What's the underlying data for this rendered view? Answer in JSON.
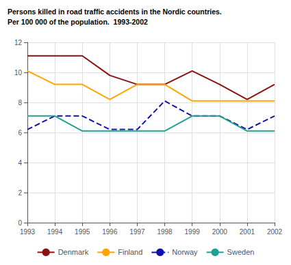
{
  "chart_data": {
    "type": "line",
    "title": "Persons killed in road traffic accidents in the Nordic countries.",
    "subtitle": "Per 100 000 of the population.  1993-2002",
    "x": [
      1993,
      1994,
      1995,
      1996,
      1997,
      1998,
      1999,
      2000,
      2001,
      2002
    ],
    "series": [
      {
        "name": "Denmark",
        "color": "#8B1010",
        "line_style": "solid",
        "values": [
          11.1,
          11.1,
          11.1,
          9.8,
          9.2,
          9.2,
          10.1,
          9.2,
          8.2,
          9.2
        ]
      },
      {
        "name": "Finland",
        "color": "#FFA500",
        "line_style": "solid",
        "values": [
          10.1,
          9.2,
          9.2,
          8.2,
          9.2,
          9.2,
          8.1,
          8.1,
          8.1,
          8.1
        ]
      },
      {
        "name": "Norway",
        "color": "#1010AA",
        "line_style": "dashed",
        "values": [
          6.2,
          7.1,
          7.1,
          6.2,
          6.2,
          8.1,
          7.1,
          7.1,
          6.2,
          7.1
        ]
      },
      {
        "name": "Sweden",
        "color": "#20A090",
        "line_style": "solid",
        "values": [
          7.1,
          7.1,
          6.1,
          6.1,
          6.1,
          6.1,
          7.1,
          7.1,
          6.1,
          6.1
        ]
      }
    ],
    "xlim": [
      1993,
      2002
    ],
    "xticks": [
      1993,
      1994,
      1995,
      1996,
      1997,
      1998,
      1999,
      2000,
      2001,
      2002
    ],
    "ylim": [
      0,
      12
    ],
    "yticks": [
      0,
      2,
      4,
      6,
      8,
      10,
      12
    ],
    "grid": true,
    "legend": "bottom"
  }
}
